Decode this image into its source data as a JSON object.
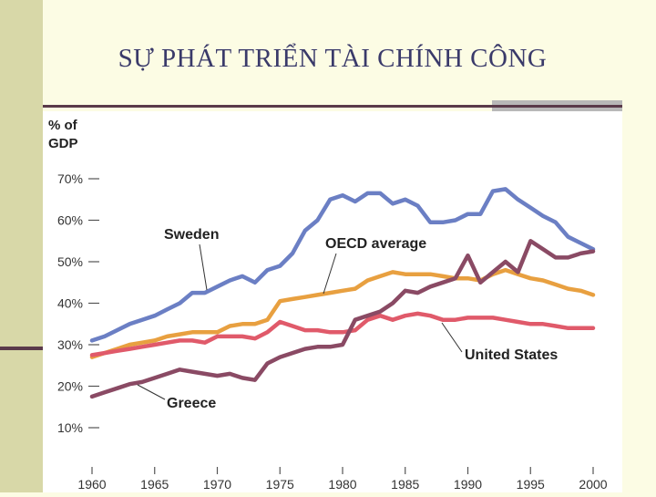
{
  "slide": {
    "title": "SỰ PHÁT TRIỂN TÀI CHÍNH CÔNG"
  },
  "colors": {
    "background": "#fcfce4",
    "sweden": "#6b7fc4",
    "oecd": "#e8a040",
    "us": "#e05a6a",
    "greece": "#8a4a64"
  },
  "chart_data": {
    "type": "line",
    "ylabel": "% of GDP",
    "y_ticks": [
      "10%",
      "20%",
      "30%",
      "40%",
      "50%",
      "60%",
      "70%"
    ],
    "x_ticks": [
      "1960",
      "1965",
      "1970",
      "1975",
      "1980",
      "1985",
      "1990",
      "1995",
      "2000"
    ],
    "xlim": [
      1960,
      2000
    ],
    "ylim": [
      0,
      70
    ],
    "x": [
      1960,
      1961,
      1962,
      1963,
      1964,
      1965,
      1966,
      1967,
      1968,
      1969,
      1970,
      1971,
      1972,
      1973,
      1974,
      1975,
      1976,
      1977,
      1978,
      1979,
      1980,
      1981,
      1982,
      1983,
      1984,
      1985,
      1986,
      1987,
      1988,
      1989,
      1990,
      1991,
      1992,
      1993,
      1994,
      1995,
      1996,
      1997,
      1998,
      1999,
      2000
    ],
    "series": [
      {
        "name": "Sweden",
        "key": "sweden",
        "values": [
          31,
          32,
          33.5,
          35,
          36,
          37,
          38.5,
          40,
          42.5,
          42.5,
          44,
          45.5,
          46.5,
          45,
          48,
          49,
          52,
          57.5,
          60,
          65,
          66,
          64.5,
          66.5,
          66.5,
          64,
          65,
          63.5,
          59.5,
          59.5,
          60,
          61.5,
          61.5,
          67,
          67.5,
          65,
          63,
          61,
          59.5,
          56,
          54.5,
          53
        ]
      },
      {
        "name": "OECD average",
        "key": "oecd",
        "values": [
          27,
          28,
          29,
          30,
          30.5,
          31,
          32,
          32.5,
          33,
          33,
          33,
          34.5,
          35,
          35,
          36,
          40.5,
          41,
          41.5,
          42,
          42.5,
          43,
          43.5,
          45.5,
          46.5,
          47.5,
          47,
          47,
          47,
          46.5,
          46,
          46,
          45.5,
          47,
          48,
          47,
          46,
          45.5,
          44.5,
          43.5,
          43,
          42
        ]
      },
      {
        "name": "United States",
        "key": "us",
        "values": [
          27.5,
          28,
          28.5,
          29,
          29.5,
          30,
          30.5,
          31,
          31,
          30.5,
          32,
          32,
          32,
          31.5,
          33,
          35.5,
          34.5,
          33.5,
          33.5,
          33,
          33,
          33.5,
          36,
          37,
          36,
          37,
          37.5,
          37,
          36,
          36,
          36.5,
          36.5,
          36.5,
          36,
          35.5,
          35,
          35,
          34.5,
          34,
          34,
          34
        ]
      },
      {
        "name": "Greece",
        "key": "greece",
        "values": [
          17.5,
          18.5,
          19.5,
          20.5,
          21,
          22,
          23,
          24,
          23.5,
          23,
          22.5,
          23,
          22,
          21.5,
          25.5,
          27,
          28,
          29,
          29.5,
          29.5,
          30,
          36,
          37,
          38,
          40,
          43,
          42.5,
          44,
          45,
          46,
          51.5,
          45,
          47.5,
          50,
          47.5,
          55,
          53,
          51,
          51,
          52,
          52.5
        ]
      }
    ],
    "labels": {
      "sweden": "Sweden",
      "oecd": "OECD average",
      "us": "United States",
      "greece": "Greece"
    }
  }
}
